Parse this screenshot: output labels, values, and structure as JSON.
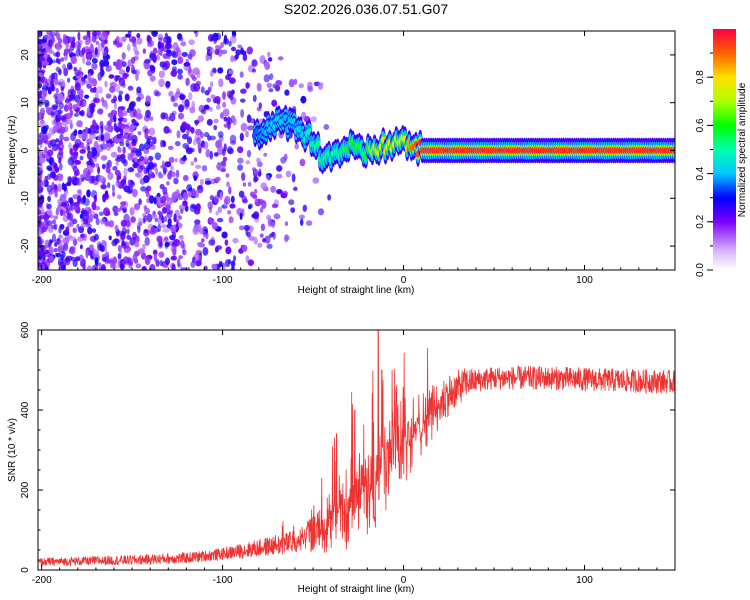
{
  "figure": {
    "title": "S202.2026.036.07.51.G07"
  },
  "chart_data": [
    {
      "type": "heatmap",
      "name": "spectrogram",
      "xlabel": "Height of straight line (km)",
      "ylabel": "Frequency (Hz)",
      "xlim": [
        -202,
        150
      ],
      "ylim": [
        -25,
        25
      ],
      "xticks": [
        -200,
        -100,
        0,
        100
      ],
      "yticks": [
        -20,
        -10,
        0,
        10,
        20
      ],
      "ridge": [
        {
          "x": -80,
          "y": 4,
          "v": 0.35
        },
        {
          "x": -72,
          "y": 5,
          "v": 0.45
        },
        {
          "x": -65,
          "y": 6,
          "v": 0.4
        },
        {
          "x": -58,
          "y": 5,
          "v": 0.45
        },
        {
          "x": -50,
          "y": 2,
          "v": 0.5
        },
        {
          "x": -45,
          "y": -1,
          "v": 0.55
        },
        {
          "x": -38,
          "y": -1,
          "v": 0.5
        },
        {
          "x": -30,
          "y": 1,
          "v": 0.6
        },
        {
          "x": -22,
          "y": -1,
          "v": 0.55
        },
        {
          "x": -15,
          "y": 0.5,
          "v": 0.75
        },
        {
          "x": -8,
          "y": 1,
          "v": 0.8
        },
        {
          "x": -2,
          "y": 2,
          "v": 0.7
        },
        {
          "x": 5,
          "y": 1,
          "v": 0.9
        },
        {
          "x": 10,
          "y": 0,
          "v": 0.95
        },
        {
          "x": 150,
          "y": 0,
          "v": 0.95
        }
      ],
      "colorbar": {
        "label": "Normalized spectral amplitude",
        "ticks": [
          0.0,
          0.2,
          0.4,
          0.6,
          0.8
        ],
        "range": [
          0,
          1
        ]
      }
    },
    {
      "type": "line",
      "name": "snr",
      "xlabel": "Height of straight line (km)",
      "ylabel": "SNR (10 * v/v)",
      "xlim": [
        -202,
        150
      ],
      "ylim": [
        0,
        600
      ],
      "xticks": [
        -200,
        -100,
        0,
        100
      ],
      "yticks": [
        0,
        200,
        400,
        600
      ],
      "color": "#ee3333",
      "trend": {
        "x": [
          -202,
          -150,
          -120,
          -100,
          -80,
          -60,
          -45,
          -35,
          -25,
          -15,
          -5,
          5,
          15,
          25,
          35,
          50,
          80,
          110,
          150
        ],
        "y": [
          20,
          25,
          30,
          40,
          55,
          70,
          100,
          150,
          190,
          250,
          300,
          340,
          390,
          440,
          470,
          480,
          480,
          475,
          470
        ]
      },
      "noise": {
        "x": [
          -202,
          -100,
          -60,
          -45,
          -30,
          -15,
          0,
          20,
          40,
          150
        ],
        "y": [
          10,
          15,
          30,
          60,
          120,
          150,
          110,
          60,
          30,
          30
        ]
      },
      "spikes": [
        {
          "x": -37,
          "y": 340
        },
        {
          "x": -27,
          "y": 400
        },
        {
          "x": -14,
          "y": 600
        },
        {
          "x": -12,
          "y": 500
        },
        {
          "x": -4,
          "y": 450
        }
      ]
    }
  ]
}
